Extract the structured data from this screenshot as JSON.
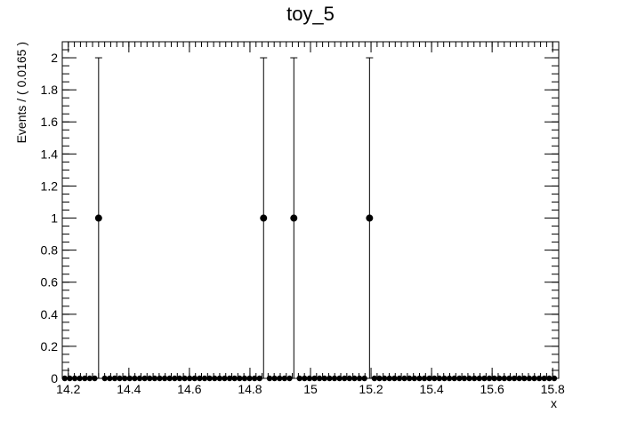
{
  "chart_data": {
    "type": "scatter",
    "title": "toy_5",
    "xlabel": "x",
    "ylabel": "Events / ( 0.0165 )",
    "xlim": [
      14.18,
      15.82
    ],
    "ylim": [
      0,
      2.1
    ],
    "bin_width": 0.0165,
    "x_ticks": [
      {
        "value": 14.2,
        "label": "14.2"
      },
      {
        "value": 14.4,
        "label": "14.4"
      },
      {
        "value": 14.6,
        "label": "14.6"
      },
      {
        "value": 14.8,
        "label": "14.8"
      },
      {
        "value": 15.0,
        "label": "15"
      },
      {
        "value": 15.2,
        "label": "15.2"
      },
      {
        "value": 15.4,
        "label": "15.4"
      },
      {
        "value": 15.6,
        "label": "15.6"
      },
      {
        "value": 15.8,
        "label": "15.8"
      }
    ],
    "y_ticks": [
      {
        "value": 0,
        "label": "0"
      },
      {
        "value": 0.2,
        "label": "0.2"
      },
      {
        "value": 0.4,
        "label": "0.4"
      },
      {
        "value": 0.6,
        "label": "0.6"
      },
      {
        "value": 0.8,
        "label": "0.8"
      },
      {
        "value": 1.0,
        "label": "1"
      },
      {
        "value": 1.2,
        "label": "1.2"
      },
      {
        "value": 1.4,
        "label": "1.4"
      },
      {
        "value": 1.6,
        "label": "1.6"
      },
      {
        "value": 1.8,
        "label": "1.8"
      },
      {
        "value": 2.0,
        "label": "2"
      }
    ],
    "nonzero_points": [
      {
        "x": 14.3,
        "y": 1,
        "err_low": 0,
        "err_high": 2
      },
      {
        "x": 14.845,
        "y": 1,
        "err_low": 0,
        "err_high": 2
      },
      {
        "x": 14.945,
        "y": 1,
        "err_low": 0,
        "err_high": 2
      },
      {
        "x": 15.195,
        "y": 1,
        "err_low": 0,
        "err_high": 2
      }
    ],
    "zero_bins_value": 0,
    "marker_color": "#000000",
    "grid": false
  }
}
